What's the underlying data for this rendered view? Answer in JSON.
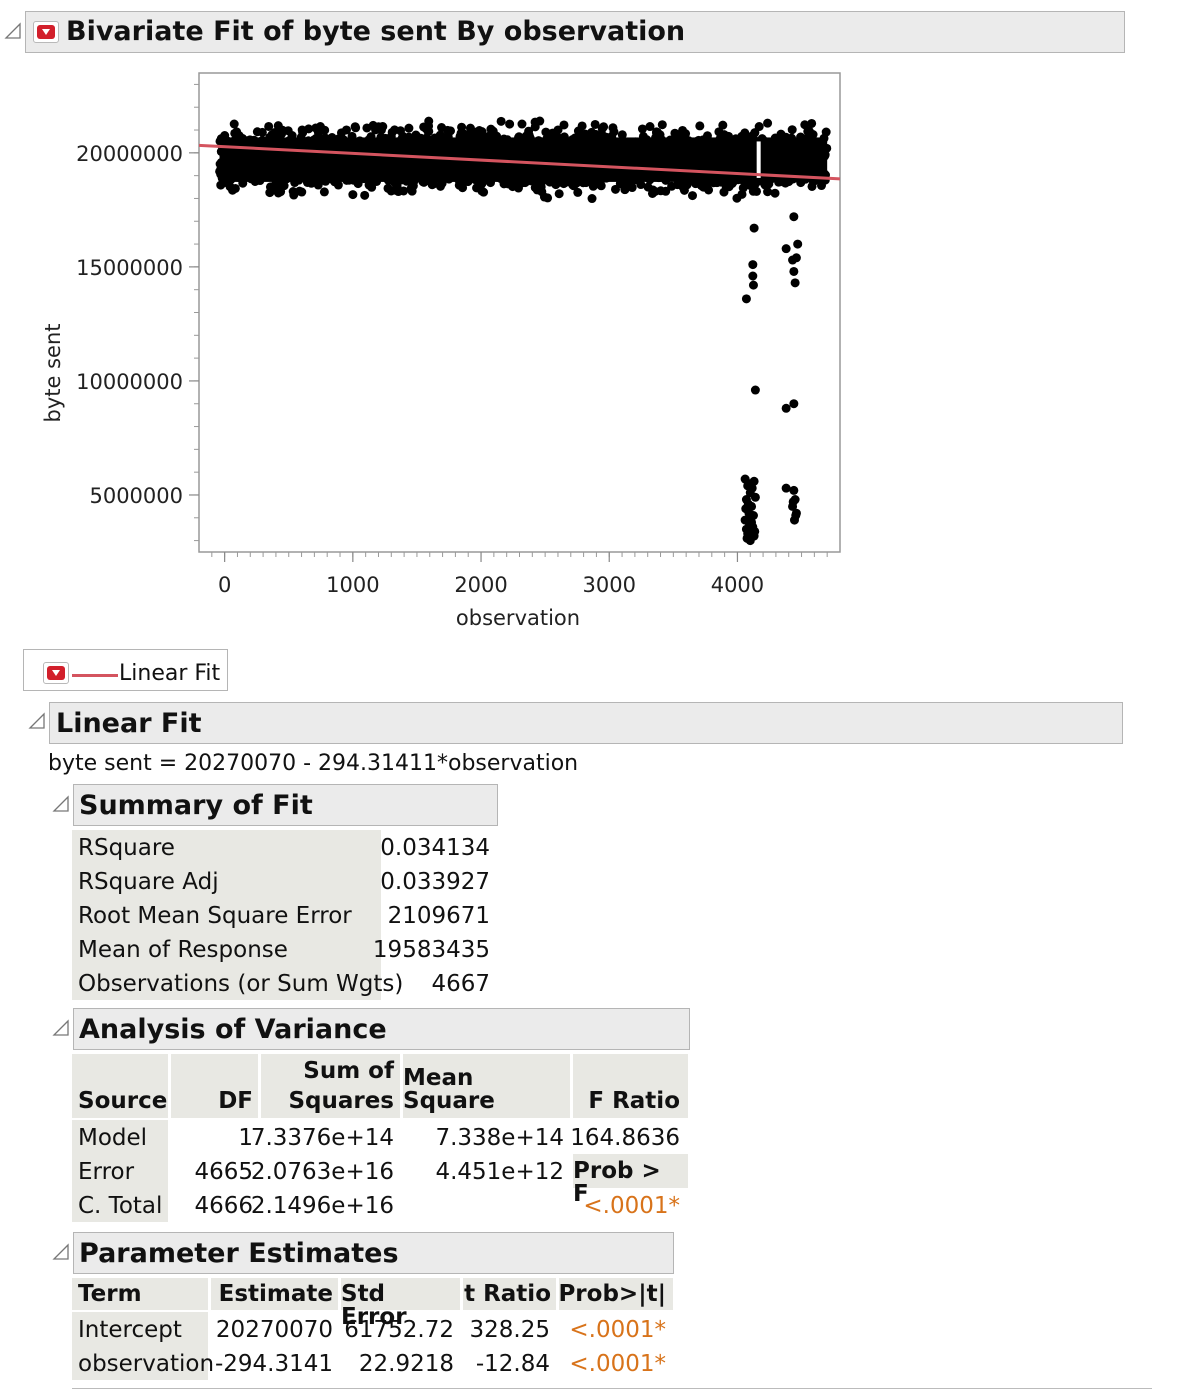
{
  "report": {
    "title": "Bivariate Fit of byte sent By observation"
  },
  "chart_data": {
    "type": "scatter",
    "xlabel": "observation",
    "ylabel": "byte sent",
    "xlim": [
      -200,
      4800
    ],
    "ylim": [
      2500000,
      23500000
    ],
    "xticks": [
      0,
      1000,
      2000,
      3000,
      4000
    ],
    "yticks": [
      5000000,
      10000000,
      15000000,
      20000000
    ],
    "xtick_labels": [
      "0",
      "1000",
      "2000",
      "3000",
      "4000"
    ],
    "ytick_labels": [
      "5000000",
      "10000000",
      "15000000",
      "20000000"
    ],
    "grid": false,
    "fit_line": {
      "intercept": 20270070,
      "slope": -294.31411,
      "color": "#d4545f"
    },
    "point_color": "#000000",
    "bulk_band": {
      "x_range": [
        -40,
        4700
      ],
      "y_center": 19700000,
      "y_spread": 1300000
    },
    "outliers": [
      {
        "x": 4070,
        "y": 13600000
      },
      {
        "x": 4120,
        "y": 15100000
      },
      {
        "x": 4120,
        "y": 14600000
      },
      {
        "x": 4125,
        "y": 14200000
      },
      {
        "x": 4130,
        "y": 16700000
      },
      {
        "x": 4140,
        "y": 9600000
      },
      {
        "x": 4380,
        "y": 8800000
      },
      {
        "x": 4440,
        "y": 9000000
      },
      {
        "x": 4430,
        "y": 15300000
      },
      {
        "x": 4440,
        "y": 14800000
      },
      {
        "x": 4450,
        "y": 14300000
      },
      {
        "x": 4470,
        "y": 16000000
      },
      {
        "x": 4380,
        "y": 15800000
      },
      {
        "x": 4440,
        "y": 17200000
      },
      {
        "x": 4460,
        "y": 15400000
      },
      {
        "x": 4060,
        "y": 5700000
      },
      {
        "x": 4080,
        "y": 5400000
      },
      {
        "x": 4100,
        "y": 5100000
      },
      {
        "x": 4070,
        "y": 4800000
      },
      {
        "x": 4110,
        "y": 4500000
      },
      {
        "x": 4090,
        "y": 4200000
      },
      {
        "x": 4060,
        "y": 3900000
      },
      {
        "x": 4120,
        "y": 3600000
      },
      {
        "x": 4080,
        "y": 3300000
      },
      {
        "x": 4100,
        "y": 3000000
      },
      {
        "x": 4130,
        "y": 5600000
      },
      {
        "x": 4140,
        "y": 4900000
      },
      {
        "x": 4065,
        "y": 4400000
      },
      {
        "x": 4125,
        "y": 4100000
      },
      {
        "x": 4095,
        "y": 3700000
      },
      {
        "x": 4135,
        "y": 3400000
      },
      {
        "x": 4075,
        "y": 3100000
      },
      {
        "x": 4115,
        "y": 5300000
      },
      {
        "x": 4085,
        "y": 4600000
      },
      {
        "x": 4105,
        "y": 4000000
      },
      {
        "x": 4070,
        "y": 3500000
      },
      {
        "x": 4130,
        "y": 3200000
      },
      {
        "x": 4090,
        "y": 5500000
      },
      {
        "x": 4110,
        "y": 3800000
      },
      {
        "x": 4380,
        "y": 5300000
      },
      {
        "x": 4440,
        "y": 5200000
      },
      {
        "x": 4450,
        "y": 4800000
      },
      {
        "x": 4430,
        "y": 4500000
      },
      {
        "x": 4460,
        "y": 4200000
      },
      {
        "x": 4445,
        "y": 3900000
      },
      {
        "x": 4455,
        "y": 4100000
      },
      {
        "x": 4435,
        "y": 4700000
      }
    ]
  },
  "legend": {
    "label": "Linear Fit"
  },
  "linear_fit": {
    "title": "Linear Fit",
    "equation": "byte sent = 20270070 - 294.31411*observation"
  },
  "summary_of_fit": {
    "title": "Summary of Fit",
    "rows": [
      {
        "label": "RSquare",
        "value": "0.034134"
      },
      {
        "label": "RSquare Adj",
        "value": "0.033927"
      },
      {
        "label": "Root Mean Square Error",
        "value": "2109671"
      },
      {
        "label": "Mean of Response",
        "value": "19583435"
      },
      {
        "label": "Observations (or Sum Wgts)",
        "value": "4667"
      }
    ]
  },
  "anova": {
    "title": "Analysis of Variance",
    "headers": {
      "source": "Source",
      "df": "DF",
      "ss_top": "Sum of",
      "ss_bottom": "Squares",
      "ms": "Mean Square",
      "f": "F Ratio",
      "prob": "Prob > F"
    },
    "rows": [
      {
        "source": "Model",
        "df": "1",
        "ss": "7.3376e+14",
        "ms": "7.338e+14",
        "f": "164.8636"
      },
      {
        "source": "Error",
        "df": "4665",
        "ss": "2.0763e+16",
        "ms": "4.451e+12"
      },
      {
        "source": "C. Total",
        "df": "4666",
        "ss": "2.1496e+16",
        "prob": "<.0001*"
      }
    ]
  },
  "parameter_estimates": {
    "title": "Parameter Estimates",
    "headers": {
      "term": "Term",
      "estimate": "Estimate",
      "std_error": "Std Error",
      "t_ratio": "t Ratio",
      "prob": "Prob>|t|"
    },
    "rows": [
      {
        "term": "Intercept",
        "estimate": "20270070",
        "std_error": "61752.72",
        "t_ratio": "328.25",
        "prob": "<.0001*"
      },
      {
        "term": "observation",
        "estimate": "-294.3141",
        "std_error": "22.9218",
        "t_ratio": "-12.84",
        "prob": "<.0001*"
      }
    ]
  }
}
